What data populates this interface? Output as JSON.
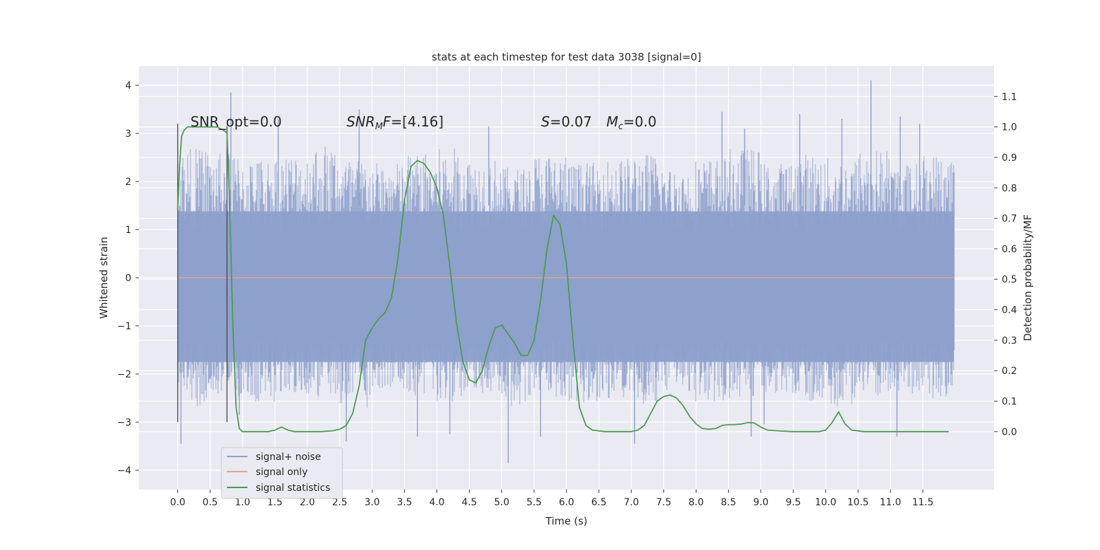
{
  "chart_data": {
    "type": "line",
    "title": "stats at each timestep for test data 3038 [signal=0]",
    "xlabel": "Time (s)",
    "ylabel": "Whitened strain",
    "y2label": "Detection probability/MF",
    "xlim": [
      -0.6,
      12.6
    ],
    "ylim": [
      -4.4,
      4.4
    ],
    "y2lim": [
      -0.19,
      1.2
    ],
    "x_ticks": [
      "0.0",
      "0.5",
      "1.0",
      "1.5",
      "2.0",
      "2.5",
      "3.0",
      "3.5",
      "4.0",
      "4.5",
      "5.0",
      "5.5",
      "6.0",
      "6.5",
      "7.0",
      "7.5",
      "8.0",
      "8.5",
      "9.0",
      "9.5",
      "10.0",
      "10.5",
      "11.0",
      "11.5"
    ],
    "y_ticks": [
      4,
      3,
      2,
      1,
      0,
      -1,
      -2,
      -3,
      -4
    ],
    "y2_ticks": [
      "1.1",
      "1.0",
      "0.9",
      "0.8",
      "0.7",
      "0.6",
      "0.5",
      "0.4",
      "0.3",
      "0.2",
      "0.1",
      "0.0"
    ],
    "grid": true,
    "legend_position": "lower-left",
    "annotations": {
      "snr_opt": "SNR_opt=0.0",
      "snr_mf_sym": "SNR",
      "snr_mf_sub": "M",
      "snr_mf_sym2": "F",
      "snr_mf_val": "=[4.16]",
      "s_sym": "S",
      "s_val": "=0.07",
      "mc_sym": "M",
      "mc_sub": "c",
      "mc_val": "=0.0"
    },
    "markers": [
      {
        "x": 0.0,
        "y_top": 3.2,
        "y_bottom": -3.0
      },
      {
        "x": 0.76,
        "y_top": 3.15,
        "y_bottom": -3.0
      }
    ],
    "series": [
      {
        "name": "signal+ noise",
        "color": "#8da0cb",
        "x_range": [
          0,
          11.98
        ],
        "band_y": [
          -1.75,
          1.38
        ],
        "envelope_upper": [
          2.7,
          2.6,
          2.5,
          2.6,
          2.8,
          2.5,
          2.4,
          2.6,
          2.7,
          2.5,
          2.3,
          2.6,
          2.4,
          2.5,
          2.6,
          2.3,
          2.5,
          2.7,
          2.4,
          2.6,
          2.5,
          2.7,
          2.4,
          2.6
        ],
        "envelope_lower": [
          -2.7,
          -2.5,
          -2.6,
          -2.4,
          -2.5,
          -2.7,
          -2.3,
          -2.5,
          -2.6,
          -2.4,
          -2.7,
          -2.5,
          -2.6,
          -2.5,
          -2.7,
          -2.4,
          -2.6,
          -2.5,
          -2.4,
          -2.6,
          -2.7,
          -2.5,
          -2.4,
          -2.6
        ],
        "peaks": [
          {
            "x": 0.05,
            "y": -3.45
          },
          {
            "x": 0.82,
            "y": 3.85
          },
          {
            "x": 0.95,
            "y": -2.85
          },
          {
            "x": 1.55,
            "y": 3.3
          },
          {
            "x": 2.6,
            "y": -3.4
          },
          {
            "x": 2.8,
            "y": 3.5
          },
          {
            "x": 3.7,
            "y": -3.3
          },
          {
            "x": 4.2,
            "y": -3.25
          },
          {
            "x": 4.8,
            "y": 3.15
          },
          {
            "x": 5.1,
            "y": -3.85
          },
          {
            "x": 5.6,
            "y": -3.3
          },
          {
            "x": 7.05,
            "y": -3.45
          },
          {
            "x": 8.4,
            "y": 3.45
          },
          {
            "x": 8.75,
            "y": 3.1
          },
          {
            "x": 8.85,
            "y": -3.3
          },
          {
            "x": 9.05,
            "y": -3.05
          },
          {
            "x": 9.6,
            "y": 3.4
          },
          {
            "x": 10.25,
            "y": 3.3
          },
          {
            "x": 10.7,
            "y": 4.1
          },
          {
            "x": 11.1,
            "y": -3.3
          },
          {
            "x": 11.15,
            "y": 3.35
          },
          {
            "x": 11.45,
            "y": 3.2
          }
        ]
      },
      {
        "name": "signal only",
        "color": "#e5a48b",
        "x": [
          0,
          11.98
        ],
        "y": [
          0,
          0
        ]
      },
      {
        "name": "signal statistics",
        "color": "#4c9a52",
        "axis": "right",
        "x": [
          0.0,
          0.03,
          0.06,
          0.1,
          0.15,
          0.2,
          0.3,
          0.4,
          0.5,
          0.6,
          0.7,
          0.76,
          0.8,
          0.85,
          0.9,
          0.95,
          1.0,
          1.2,
          1.4,
          1.5,
          1.6,
          1.7,
          1.8,
          2.0,
          2.2,
          2.4,
          2.5,
          2.6,
          2.7,
          2.8,
          2.9,
          3.0,
          3.1,
          3.2,
          3.3,
          3.4,
          3.5,
          3.6,
          3.7,
          3.8,
          3.9,
          4.0,
          4.1,
          4.2,
          4.3,
          4.4,
          4.5,
          4.6,
          4.7,
          4.8,
          4.9,
          5.0,
          5.1,
          5.2,
          5.3,
          5.4,
          5.5,
          5.6,
          5.7,
          5.8,
          5.9,
          6.0,
          6.1,
          6.2,
          6.3,
          6.4,
          6.6,
          6.8,
          7.0,
          7.1,
          7.2,
          7.3,
          7.4,
          7.5,
          7.6,
          7.7,
          7.8,
          7.9,
          8.0,
          8.1,
          8.2,
          8.3,
          8.4,
          8.5,
          8.6,
          8.7,
          8.8,
          8.9,
          9.0,
          9.1,
          9.3,
          9.5,
          9.7,
          9.9,
          10.0,
          10.1,
          10.2,
          10.3,
          10.4,
          10.6,
          11.0,
          11.5,
          11.9
        ],
        "y": [
          0.73,
          0.88,
          0.97,
          0.99,
          1.0,
          1.0,
          1.0,
          1.0,
          1.0,
          1.0,
          0.99,
          0.98,
          0.75,
          0.35,
          0.08,
          0.01,
          0.0,
          0.0,
          0.0,
          0.005,
          0.015,
          0.005,
          0.0,
          0.0,
          0.0,
          0.003,
          0.008,
          0.02,
          0.06,
          0.15,
          0.3,
          0.34,
          0.37,
          0.39,
          0.44,
          0.57,
          0.76,
          0.87,
          0.89,
          0.88,
          0.85,
          0.8,
          0.71,
          0.54,
          0.36,
          0.23,
          0.17,
          0.16,
          0.2,
          0.28,
          0.34,
          0.35,
          0.32,
          0.29,
          0.25,
          0.25,
          0.3,
          0.43,
          0.6,
          0.71,
          0.68,
          0.55,
          0.3,
          0.08,
          0.02,
          0.005,
          0.0,
          0.0,
          0.0,
          0.005,
          0.02,
          0.06,
          0.1,
          0.115,
          0.12,
          0.11,
          0.085,
          0.05,
          0.025,
          0.01,
          0.008,
          0.01,
          0.02,
          0.023,
          0.023,
          0.025,
          0.03,
          0.028,
          0.015,
          0.005,
          0.002,
          0.0,
          0.0,
          0.0,
          0.005,
          0.03,
          0.065,
          0.025,
          0.005,
          0.0,
          0.0,
          0.0,
          0.0
        ]
      }
    ]
  }
}
